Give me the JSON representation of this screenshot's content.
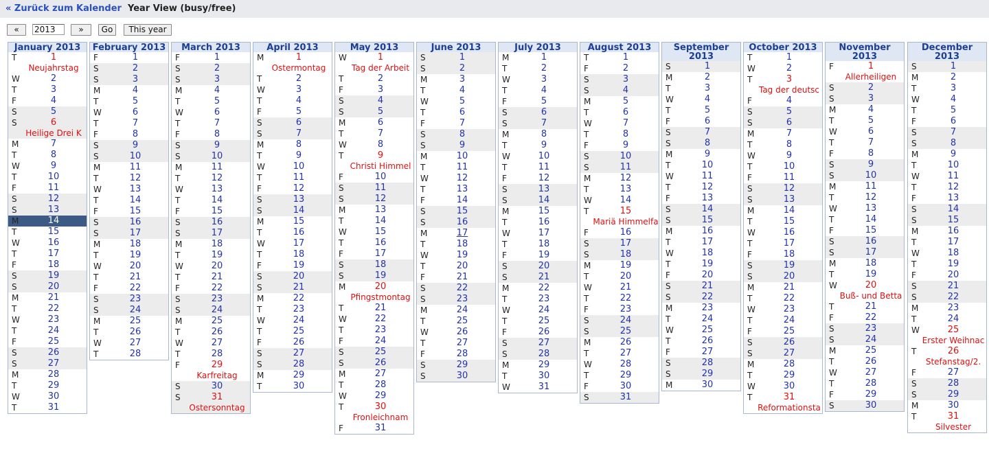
{
  "nav": {
    "back_label": "« Zurück zum Kalender",
    "view_title": "Year View (busy/free)"
  },
  "controls": {
    "prev_label": "«",
    "year_value": "2013",
    "next_label": "»",
    "go_label": "Go",
    "this_year_label": "This year"
  },
  "weekday_letters": [
    "M",
    "T",
    "W",
    "T",
    "F",
    "S",
    "S"
  ],
  "colors": {
    "header_bg": "#dfe7f5",
    "header_text": "#1c3f94",
    "day_number": "#2233aa",
    "weekend_row": "#ececec",
    "holiday": "#e01010",
    "today_bg": "#3d5a84"
  },
  "today": {
    "month": 1,
    "day": 14
  },
  "months": [
    {
      "title": "January 2013",
      "first_weekday": 1,
      "days": 31,
      "holidays": [
        {
          "day": 1,
          "name": "Neujahrstag"
        },
        {
          "day": 6,
          "name": "Heilige Drei K"
        }
      ]
    },
    {
      "title": "February 2013",
      "first_weekday": 4,
      "days": 28,
      "holidays": []
    },
    {
      "title": "March 2013",
      "first_weekday": 4,
      "days": 31,
      "holidays": [
        {
          "day": 29,
          "name": "Karfreitag"
        },
        {
          "day": 31,
          "name": "Ostersonntag"
        }
      ]
    },
    {
      "title": "April 2013",
      "first_weekday": 0,
      "days": 30,
      "holidays": [
        {
          "day": 1,
          "name": "Ostermontag"
        }
      ]
    },
    {
      "title": "May 2013",
      "first_weekday": 2,
      "days": 31,
      "holidays": [
        {
          "day": 1,
          "name": "Tag der Arbeit"
        },
        {
          "day": 9,
          "name": "Christi Himmel"
        },
        {
          "day": 20,
          "name": "Pfingstmontag"
        },
        {
          "day": 30,
          "name": "Fronleichnam"
        }
      ]
    },
    {
      "title": "June 2013",
      "first_weekday": 5,
      "days": 30,
      "holidays": [],
      "underlined_day": 17
    },
    {
      "title": "July 2013",
      "first_weekday": 0,
      "days": 31,
      "holidays": []
    },
    {
      "title": "August 2013",
      "first_weekday": 3,
      "days": 31,
      "holidays": [
        {
          "day": 15,
          "name": "Mariä Himmelfa"
        }
      ]
    },
    {
      "title": "September 2013",
      "first_weekday": 6,
      "days": 30,
      "holidays": []
    },
    {
      "title": "October 2013",
      "first_weekday": 1,
      "days": 31,
      "holidays": [
        {
          "day": 3,
          "name": "Tag der deutsc"
        },
        {
          "day": 31,
          "name": "Reformationsta"
        }
      ]
    },
    {
      "title": "November 2013",
      "first_weekday": 4,
      "days": 30,
      "holidays": [
        {
          "day": 1,
          "name": "Allerheiligen"
        },
        {
          "day": 20,
          "name": "Buß- und Betta"
        }
      ]
    },
    {
      "title": "December 2013",
      "first_weekday": 6,
      "days": 31,
      "holidays": [
        {
          "day": 25,
          "name": "Erster Weihnac"
        },
        {
          "day": 26,
          "name": "Stefanstag/2."
        },
        {
          "day": 31,
          "name": "Silvester"
        }
      ]
    }
  ]
}
